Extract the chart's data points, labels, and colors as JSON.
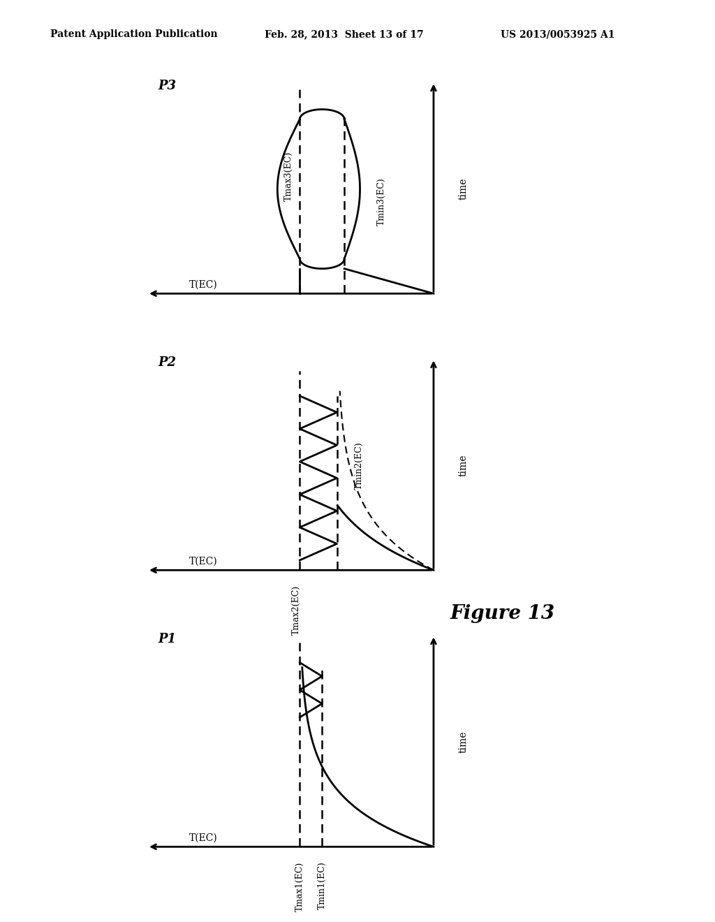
{
  "header_left": "Patent Application Publication",
  "header_center": "Feb. 28, 2013  Sheet 13 of 17",
  "header_right": "US 2013/0053925 A1",
  "figure_label": "Figure 13",
  "panels": [
    {
      "label": "P1",
      "tec_label": "T(EC)",
      "tmax_label": "Tmax1(EC)",
      "tmin_label": "Tmin1(EC)",
      "type": "rise_zigzag_single"
    },
    {
      "label": "P2",
      "tec_label": "T(EC)",
      "tmax_label": "Tmax2(EC)",
      "tmin_label": "Tmin2(EC)",
      "type": "rise_zigzag"
    },
    {
      "label": "P3",
      "tec_label": "T(EC)",
      "tmax_label": "Tmax3(EC)",
      "tmin_label": "Tmin3(EC)",
      "type": "bump"
    }
  ]
}
